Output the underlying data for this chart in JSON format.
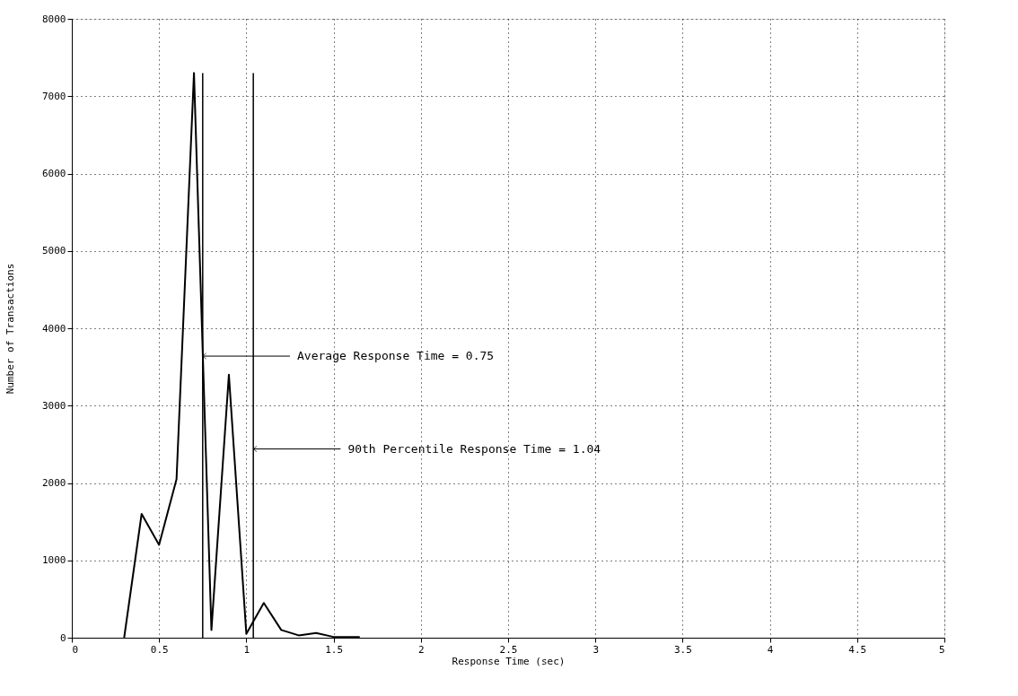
{
  "chart_data": {
    "type": "line",
    "xlabel": "Response Time (sec)",
    "ylabel": "Number of Transactions",
    "x": [
      0.3,
      0.4,
      0.5,
      0.6,
      0.7,
      0.8,
      0.9,
      1.0,
      1.1,
      1.2,
      1.3,
      1.4,
      1.5,
      1.6,
      1.65
    ],
    "series": [
      {
        "color": "#000000",
        "values": [
          0,
          1600,
          1200,
          2050,
          7300,
          100,
          3400,
          50,
          450,
          100,
          30,
          60,
          10,
          10,
          10
        ]
      }
    ],
    "xlim": [
      0,
      5
    ],
    "xticks": [
      0,
      0.5,
      1,
      1.5,
      2,
      2.5,
      3,
      3.5,
      4,
      4.5,
      5
    ],
    "ylim": [
      0,
      8000
    ],
    "yticks": [
      0,
      1000,
      2000,
      3000,
      4000,
      5000,
      6000,
      7000,
      8000
    ],
    "ref_lines": [
      {
        "axis": "x",
        "value": 0.75,
        "label": "Average Response Time = 0.75",
        "color": "#000000"
      },
      {
        "axis": "x",
        "value": 1.04,
        "label": "90th Percentile Response Time = 1.04",
        "color": "#000000"
      }
    ],
    "grid": true,
    "marker": "none",
    "line_style": "solid"
  }
}
